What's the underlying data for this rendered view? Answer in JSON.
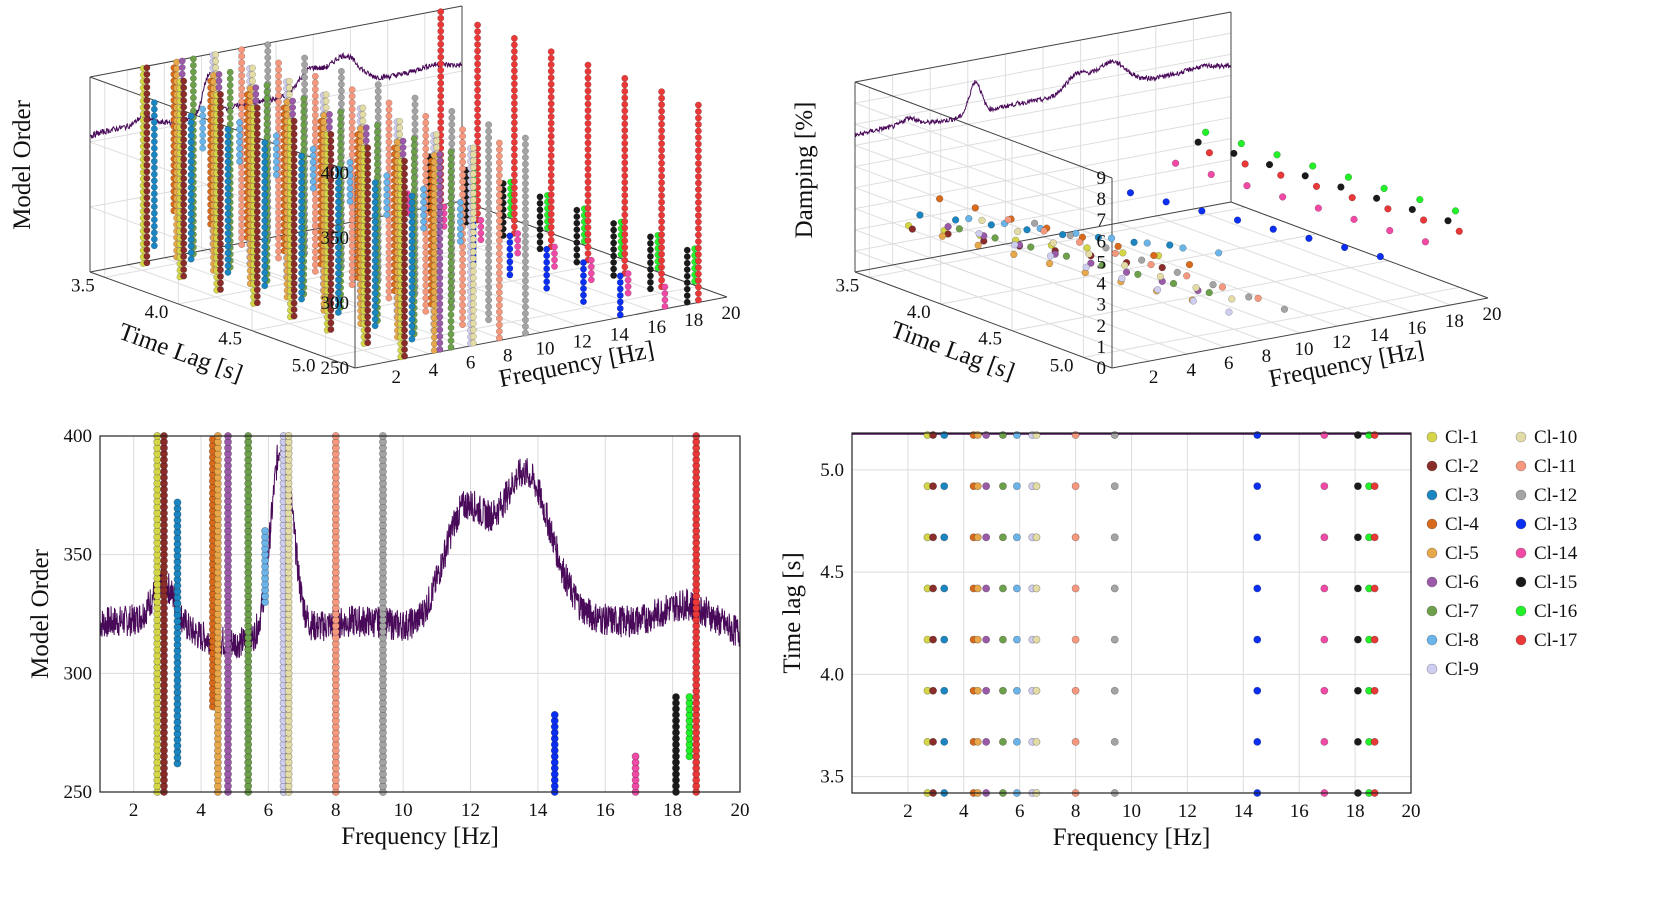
{
  "figure": "stabilization-diagram",
  "legend": [
    {
      "label": "Cl-1",
      "color": "#d4d648"
    },
    {
      "label": "Cl-2",
      "color": "#8a2c2a"
    },
    {
      "label": "Cl-3",
      "color": "#1a85c0"
    },
    {
      "label": "Cl-4",
      "color": "#d96a1c"
    },
    {
      "label": "Cl-5",
      "color": "#e6a84a"
    },
    {
      "label": "Cl-6",
      "color": "#9a5aa8"
    },
    {
      "label": "Cl-7",
      "color": "#6da04a"
    },
    {
      "label": "Cl-8",
      "color": "#6ab4ea"
    },
    {
      "label": "Cl-9",
      "color": "#cfcdf0"
    },
    {
      "label": "Cl-10",
      "color": "#e3dca6"
    },
    {
      "label": "Cl-11",
      "color": "#f6987d"
    },
    {
      "label": "Cl-12",
      "color": "#a4a4a4"
    },
    {
      "label": "Cl-13",
      "color": "#0a2ef2"
    },
    {
      "label": "Cl-14",
      "color": "#f04aa6"
    },
    {
      "label": "Cl-15",
      "color": "#1a1a1a"
    },
    {
      "label": "Cl-16",
      "color": "#22f028"
    },
    {
      "label": "Cl-17",
      "color": "#ea3838"
    }
  ],
  "chart_data": [
    {
      "id": "3d-model-order",
      "type": "scatter",
      "title": "",
      "xlabel": "Frequency [Hz]",
      "ylabel": "Time Lag [s]",
      "zlabel": "Model Order",
      "xlim": [
        0,
        20
      ],
      "ylim": [
        3.4,
        5.2
      ],
      "zlim": [
        250,
        400
      ],
      "xticks": [
        2,
        4,
        6,
        8,
        10,
        12,
        14,
        16,
        18,
        20
      ],
      "xtick_labels": [
        "2",
        "4",
        "6",
        "8",
        "10",
        "12",
        "14",
        "16",
        "18",
        "20"
      ],
      "yticks": [
        3.5,
        4.0,
        4.5,
        5.0
      ],
      "ytick_labels": [
        "3.5",
        "4.0",
        "4.5",
        "5.0"
      ],
      "zticks": [
        250,
        300,
        350,
        400
      ],
      "ztick_labels": [
        "250",
        "300",
        "350",
        "400"
      ],
      "time_lags": [
        3.42,
        3.67,
        3.92,
        4.17,
        4.42,
        4.67,
        4.92,
        5.17
      ],
      "clusters": [
        {
          "name": "Cl-1",
          "freq": 2.7,
          "zmin": 250,
          "zmax": 400
        },
        {
          "name": "Cl-2",
          "freq": 2.9,
          "zmin": 250,
          "zmax": 400
        },
        {
          "name": "Cl-3",
          "freq": 3.3,
          "zmin": 262,
          "zmax": 372
        },
        {
          "name": "Cl-4",
          "freq": 4.35,
          "zmin": 286,
          "zmax": 400
        },
        {
          "name": "Cl-5",
          "freq": 4.5,
          "zmin": 250,
          "zmax": 400
        },
        {
          "name": "Cl-6",
          "freq": 4.8,
          "zmin": 250,
          "zmax": 400
        },
        {
          "name": "Cl-7",
          "freq": 5.4,
          "zmin": 250,
          "zmax": 400
        },
        {
          "name": "Cl-8",
          "freq": 5.9,
          "zmin": 330,
          "zmax": 360
        },
        {
          "name": "Cl-9",
          "freq": 6.45,
          "zmin": 250,
          "zmax": 400
        },
        {
          "name": "Cl-10",
          "freq": 6.6,
          "zmin": 250,
          "zmax": 400
        },
        {
          "name": "Cl-11",
          "freq": 8.0,
          "zmin": 250,
          "zmax": 400
        },
        {
          "name": "Cl-12",
          "freq": 9.4,
          "zmin": 250,
          "zmax": 400
        },
        {
          "name": "Cl-13",
          "freq": 14.5,
          "zmin": 250,
          "zmax": 284
        },
        {
          "name": "Cl-14",
          "freq": 16.9,
          "zmin": 250,
          "zmax": 265
        },
        {
          "name": "Cl-15",
          "freq": 18.1,
          "zmin": 250,
          "zmax": 290
        },
        {
          "name": "Cl-16",
          "freq": 18.5,
          "zmin": 265,
          "zmax": 290
        },
        {
          "name": "Cl-17",
          "freq": 18.7,
          "zmin": 250,
          "zmax": 400
        }
      ],
      "spectrum_overlay": true
    },
    {
      "id": "3d-damping",
      "type": "scatter",
      "title": "",
      "xlabel": "Frequency [Hz]",
      "ylabel": "Time Lag [s]",
      "zlabel": "Damping [%]",
      "xlim": [
        0,
        20
      ],
      "ylim": [
        3.4,
        5.2
      ],
      "zlim": [
        0,
        9
      ],
      "xticks": [
        2,
        4,
        6,
        8,
        10,
        12,
        14,
        16,
        18,
        20
      ],
      "xtick_labels": [
        "2",
        "4",
        "6",
        "8",
        "10",
        "12",
        "14",
        "16",
        "18",
        "20"
      ],
      "yticks": [
        3.5,
        4.0,
        4.5,
        5.0
      ],
      "ytick_labels": [
        "3.5",
        "4.0",
        "4.5",
        "5.0"
      ],
      "zticks": [
        0,
        1,
        2,
        3,
        4,
        5,
        6,
        7,
        8,
        9
      ],
      "ztick_labels": [
        "0",
        "1",
        "2",
        "3",
        "4",
        "5",
        "6",
        "7",
        "8",
        "9"
      ],
      "time_lags": [
        3.42,
        3.67,
        3.92,
        4.17,
        4.42,
        4.67,
        4.92,
        5.17
      ],
      "damping": [
        {
          "name": "Cl-1",
          "freq": 2.7,
          "damping": [
            1.8,
            2.2,
            2.6,
            3.0,
            3.4,
            3.9,
            4.3,
            4.8
          ]
        },
        {
          "name": "Cl-2",
          "freq": 2.9,
          "damping": [
            1.6,
            2.0,
            2.3,
            2.7,
            3.1,
            3.5,
            3.8,
            4.2
          ]
        },
        {
          "name": "Cl-3",
          "freq": 3.3,
          "damping": [
            2.2,
            2.6,
            3.0,
            3.4,
            3.8,
            4.3,
            4.7,
            5.2
          ]
        },
        {
          "name": "Cl-4",
          "freq": 4.35,
          "damping": [
            2.8,
            3.0,
            3.1,
            3.3,
            3.5,
            3.7,
            3.9,
            4.1
          ]
        },
        {
          "name": "Cl-5",
          "freq": 4.5,
          "damping": [
            1.0,
            1.2,
            1.4,
            1.6,
            1.8,
            2.0,
            2.2,
            2.4
          ]
        },
        {
          "name": "Cl-6",
          "freq": 4.8,
          "damping": [
            1.4,
            1.6,
            1.8,
            2.0,
            2.2,
            2.4,
            2.6,
            2.8
          ]
        },
        {
          "name": "Cl-7",
          "freq": 5.4,
          "damping": [
            1.2,
            1.4,
            1.6,
            1.8,
            2.0,
            2.2,
            2.4,
            2.6
          ]
        },
        {
          "name": "Cl-8",
          "freq": 5.9,
          "damping": [
            1.6,
            2.0,
            2.4,
            2.8,
            3.2,
            3.6,
            4.0,
            4.4
          ]
        },
        {
          "name": "Cl-9",
          "freq": 6.45,
          "damping": [
            0.8,
            0.9,
            1.0,
            1.1,
            1.2,
            1.3,
            1.4,
            1.5
          ]
        },
        {
          "name": "Cl-10",
          "freq": 6.6,
          "damping": [
            1.4,
            1.5,
            1.6,
            1.7,
            1.8,
            1.9,
            2.0,
            2.1
          ]
        },
        {
          "name": "Cl-11",
          "freq": 8.0,
          "damping": [
            1.2,
            1.3,
            1.4,
            1.5,
            1.6,
            1.7,
            1.8,
            1.9
          ]
        },
        {
          "name": "Cl-12",
          "freq": 9.4,
          "damping": [
            0.8,
            0.85,
            0.9,
            0.95,
            1.0,
            1.05,
            1.1,
            1.15
          ]
        },
        {
          "name": "Cl-13",
          "freq": 14.5,
          "damping": [
            1.4,
            1.6,
            1.8,
            2.0,
            2.2,
            2.4,
            2.6,
            2.8
          ]
        },
        {
          "name": "Cl-14",
          "freq": 16.9,
          "damping": [
            2.4,
            2.5,
            2.6,
            2.7,
            2.8,
            2.9,
            3.0,
            3.1
          ]
        },
        {
          "name": "Cl-15",
          "freq": 18.1,
          "damping": [
            3.2,
            3.3,
            3.4,
            3.5,
            3.6,
            3.7,
            3.8,
            3.9
          ]
        },
        {
          "name": "Cl-16",
          "freq": 18.5,
          "damping": [
            3.6,
            3.7,
            3.8,
            3.9,
            4.0,
            4.1,
            4.2,
            4.3
          ]
        },
        {
          "name": "Cl-17",
          "freq": 18.7,
          "damping": [
            2.6,
            2.7,
            2.8,
            2.9,
            3.0,
            3.1,
            3.2,
            3.3
          ]
        }
      ],
      "spectrum_overlay": true
    },
    {
      "id": "2d-model-order",
      "type": "scatter",
      "title": "",
      "xlabel": "Frequency [Hz]",
      "ylabel": "Model Order",
      "xlim": [
        1,
        20
      ],
      "ylim": [
        250,
        400
      ],
      "xticks": [
        2,
        4,
        6,
        8,
        10,
        12,
        14,
        16,
        18,
        20
      ],
      "xtick_labels": [
        "2",
        "4",
        "6",
        "8",
        "10",
        "12",
        "14",
        "16",
        "18",
        "20"
      ],
      "yticks": [
        250,
        300,
        350,
        400
      ],
      "ytick_labels": [
        "250",
        "300",
        "350",
        "400"
      ],
      "grid": true,
      "spectrum_overlay": true
    },
    {
      "id": "2d-time-lag",
      "type": "scatter",
      "title": "",
      "xlabel": "Frequency [Hz]",
      "ylabel": "Time lag [s]",
      "xlim": [
        0,
        20
      ],
      "ylim": [
        3.42,
        5.18
      ],
      "xticks": [
        2,
        4,
        6,
        8,
        10,
        12,
        14,
        16,
        18,
        20
      ],
      "xtick_labels": [
        "2",
        "4",
        "6",
        "8",
        "10",
        "12",
        "14",
        "16",
        "18",
        "20"
      ],
      "yticks": [
        3.5,
        4.0,
        4.5,
        5.0
      ],
      "ytick_labels": [
        "3.5",
        "4.0",
        "4.5",
        "5.0"
      ],
      "grid": true,
      "legend": "right"
    }
  ]
}
